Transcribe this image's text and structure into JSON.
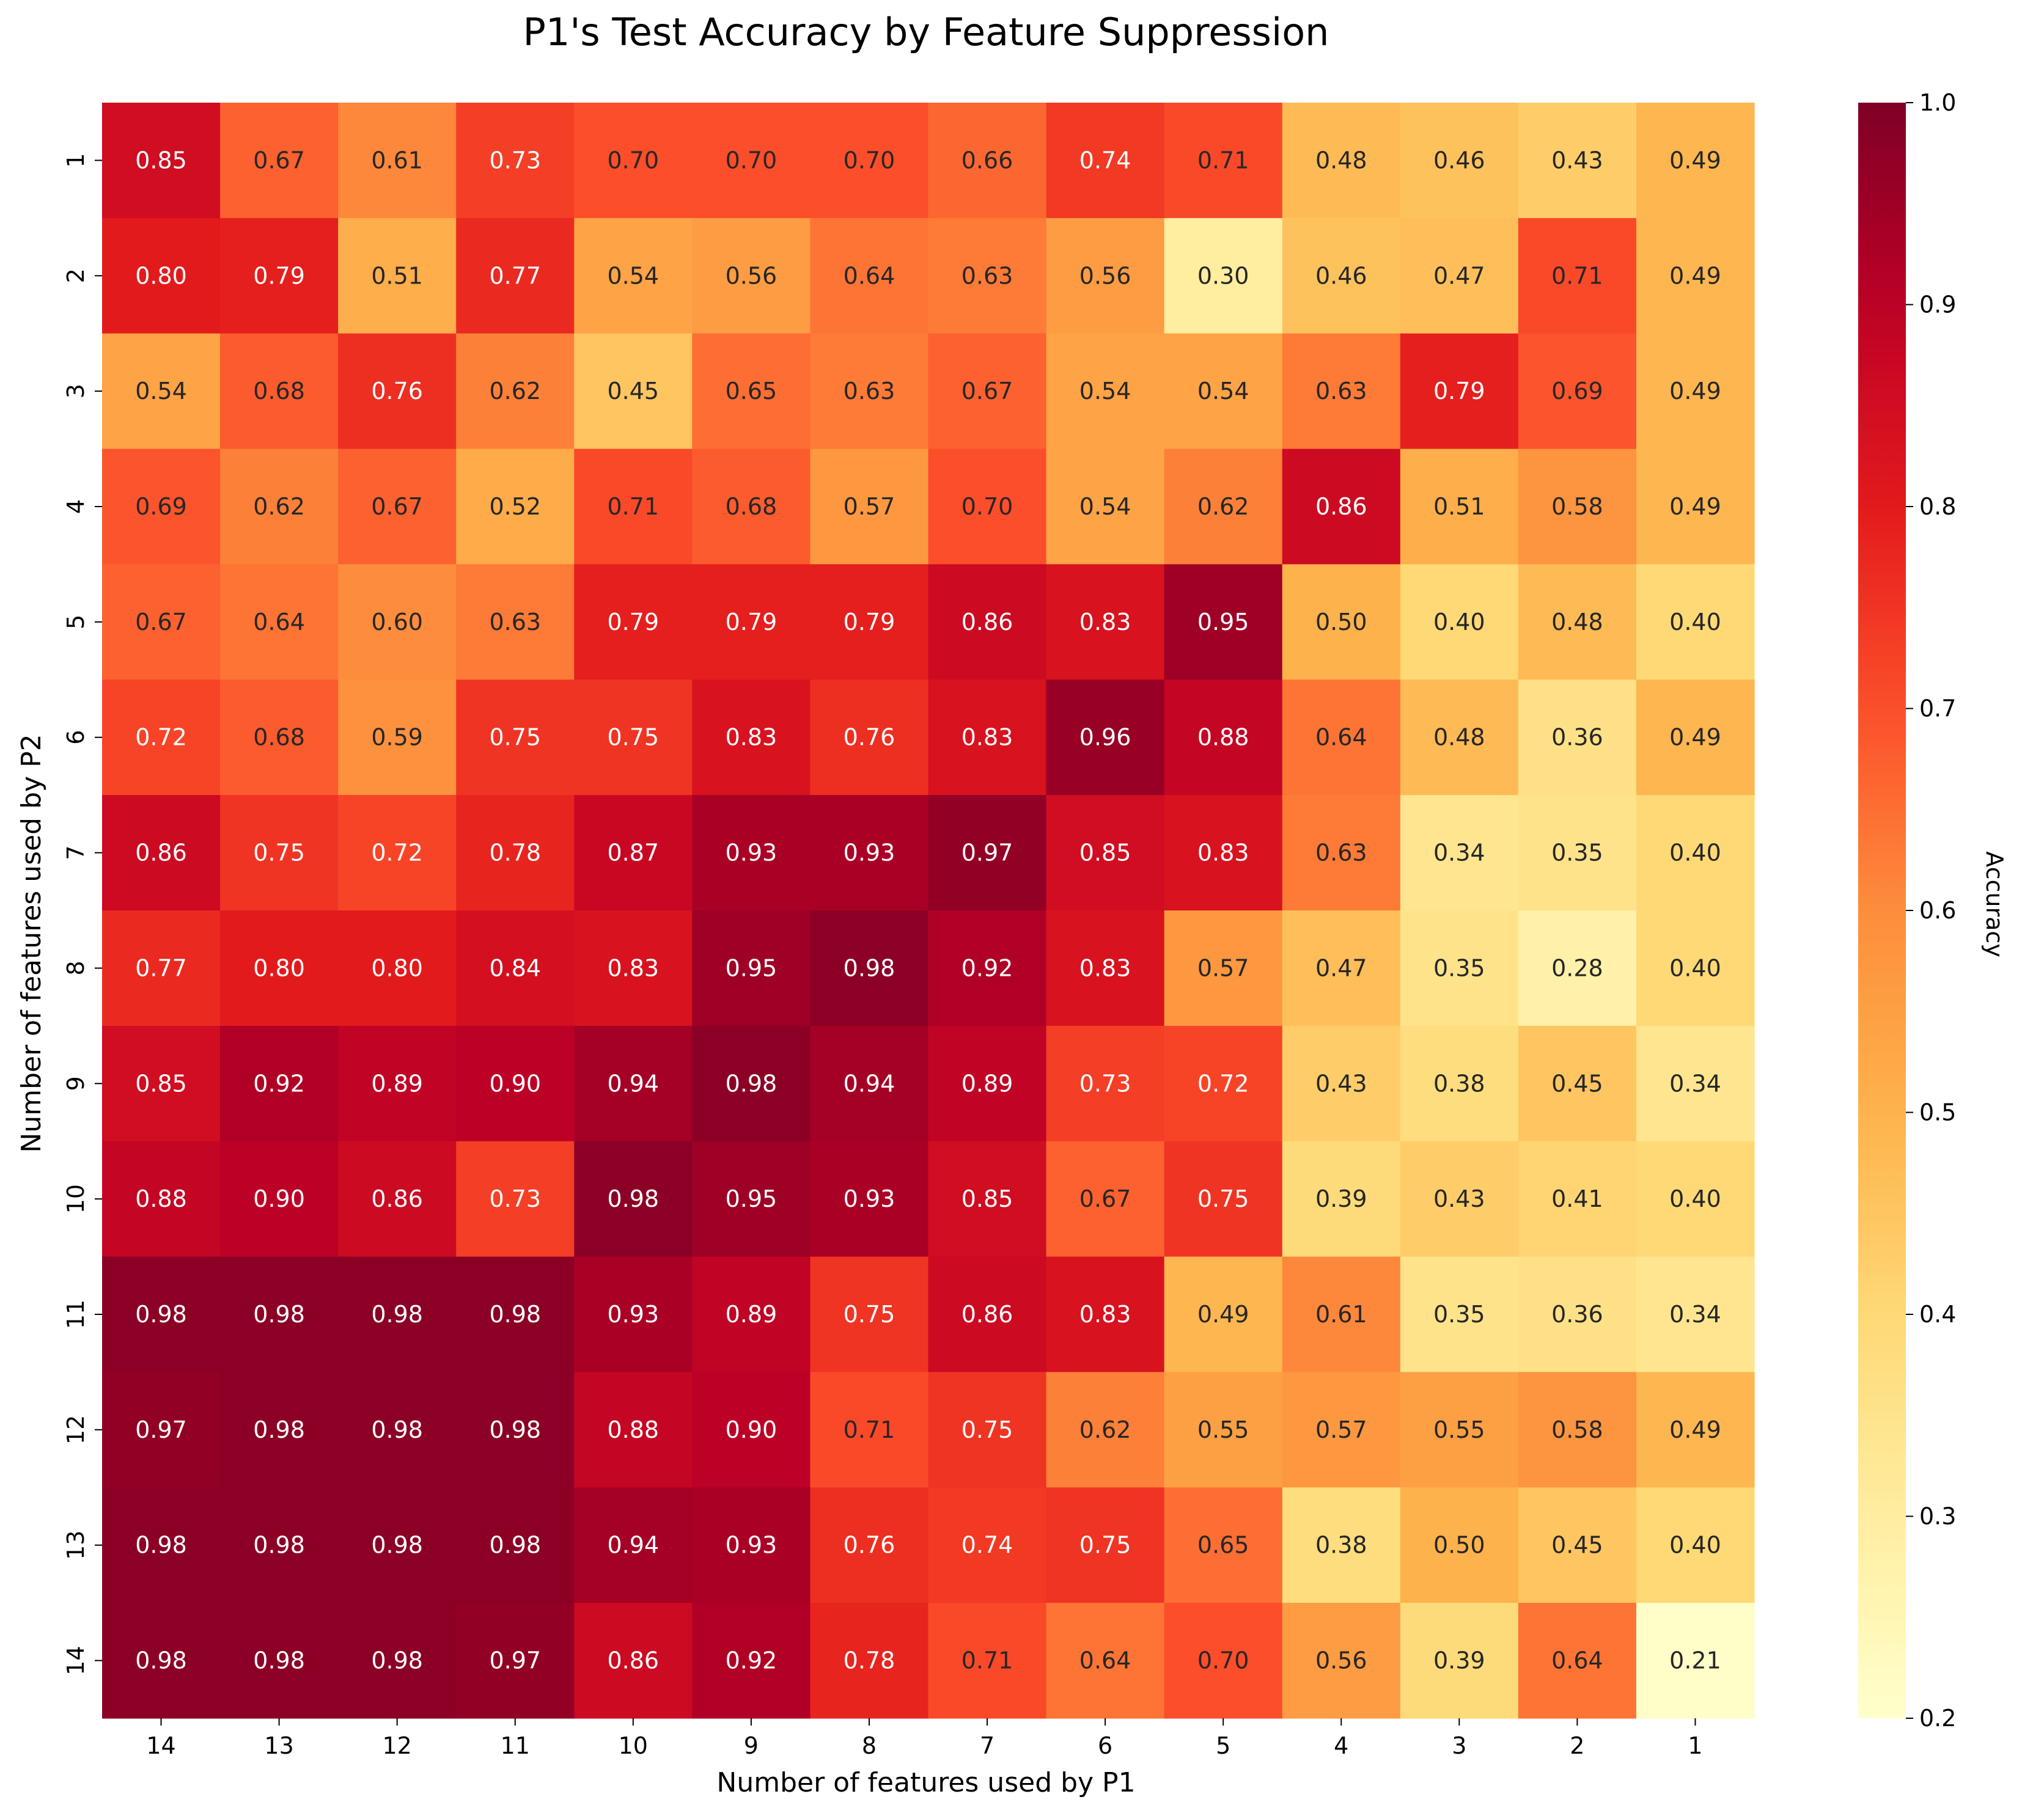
{
  "chart_data": {
    "type": "heatmap",
    "title": "P1's Test Accuracy by Feature Suppression",
    "xlabel": "Number of features used by P1",
    "ylabel": "Number of features used by P2",
    "x_categories": [
      "14",
      "13",
      "12",
      "11",
      "10",
      "9",
      "8",
      "7",
      "6",
      "5",
      "4",
      "3",
      "2",
      "1"
    ],
    "y_categories": [
      "1",
      "2",
      "3",
      "4",
      "5",
      "6",
      "7",
      "8",
      "9",
      "10",
      "11",
      "12",
      "13",
      "14"
    ],
    "values": [
      [
        0.85,
        0.67,
        0.61,
        0.73,
        0.7,
        0.7,
        0.7,
        0.66,
        0.74,
        0.71,
        0.48,
        0.46,
        0.43,
        0.49
      ],
      [
        0.8,
        0.79,
        0.51,
        0.77,
        0.54,
        0.56,
        0.64,
        0.63,
        0.56,
        0.3,
        0.46,
        0.47,
        0.71,
        0.49
      ],
      [
        0.54,
        0.68,
        0.76,
        0.62,
        0.45,
        0.65,
        0.63,
        0.67,
        0.54,
        0.54,
        0.63,
        0.79,
        0.69,
        0.49
      ],
      [
        0.69,
        0.62,
        0.67,
        0.52,
        0.71,
        0.68,
        0.57,
        0.7,
        0.54,
        0.62,
        0.86,
        0.51,
        0.58,
        0.49
      ],
      [
        0.67,
        0.64,
        0.6,
        0.63,
        0.79,
        0.79,
        0.79,
        0.86,
        0.83,
        0.95,
        0.5,
        0.4,
        0.48,
        0.4
      ],
      [
        0.72,
        0.68,
        0.59,
        0.75,
        0.75,
        0.83,
        0.76,
        0.83,
        0.96,
        0.88,
        0.64,
        0.48,
        0.36,
        0.49
      ],
      [
        0.86,
        0.75,
        0.72,
        0.78,
        0.87,
        0.93,
        0.93,
        0.97,
        0.85,
        0.83,
        0.63,
        0.34,
        0.35,
        0.4
      ],
      [
        0.77,
        0.8,
        0.8,
        0.84,
        0.83,
        0.95,
        0.98,
        0.92,
        0.83,
        0.57,
        0.47,
        0.35,
        0.28,
        0.4
      ],
      [
        0.85,
        0.92,
        0.89,
        0.9,
        0.94,
        0.98,
        0.94,
        0.89,
        0.73,
        0.72,
        0.43,
        0.38,
        0.45,
        0.34
      ],
      [
        0.88,
        0.9,
        0.86,
        0.73,
        0.98,
        0.95,
        0.93,
        0.85,
        0.67,
        0.75,
        0.39,
        0.43,
        0.41,
        0.4
      ],
      [
        0.98,
        0.98,
        0.98,
        0.98,
        0.93,
        0.89,
        0.75,
        0.86,
        0.83,
        0.49,
        0.61,
        0.35,
        0.36,
        0.34
      ],
      [
        0.97,
        0.98,
        0.98,
        0.98,
        0.88,
        0.9,
        0.71,
        0.75,
        0.62,
        0.55,
        0.57,
        0.55,
        0.58,
        0.49
      ],
      [
        0.98,
        0.98,
        0.98,
        0.98,
        0.94,
        0.93,
        0.76,
        0.74,
        0.75,
        0.65,
        0.38,
        0.5,
        0.45,
        0.4
      ],
      [
        0.98,
        0.98,
        0.98,
        0.97,
        0.86,
        0.92,
        0.78,
        0.71,
        0.64,
        0.7,
        0.56,
        0.39,
        0.64,
        0.21
      ]
    ],
    "vmin": 0.2,
    "vmax": 1.0,
    "colormap": "YlOrRd",
    "colorbar": {
      "label": "Accuracy",
      "ticks": [
        "0.2",
        "0.3",
        "0.4",
        "0.5",
        "0.6",
        "0.7",
        "0.8",
        "0.9",
        "1.0"
      ],
      "placement": "right"
    },
    "annotations": "cell values shown with 2 decimals"
  }
}
